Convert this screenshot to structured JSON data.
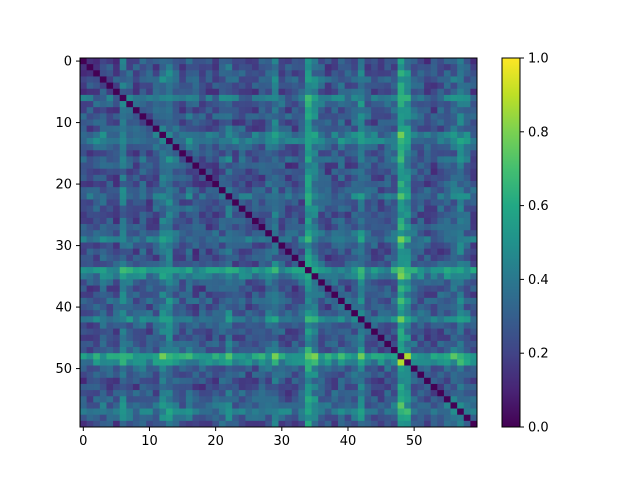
{
  "chart_data": {
    "type": "heatmap",
    "title": "",
    "xlabel": "",
    "ylabel": "",
    "rows": 60,
    "cols": 60,
    "colormap": "viridis",
    "colorbar_range": [
      0.0,
      1.0
    ],
    "colorbar_ticks": [
      "0.0",
      "0.2",
      "0.4",
      "0.6",
      "0.8",
      "1.0"
    ],
    "x_ticks": [
      "0",
      "10",
      "20",
      "30",
      "40",
      "50"
    ],
    "y_ticks": [
      "0",
      "10",
      "20",
      "30",
      "40",
      "50"
    ],
    "diagonal_value": 0.0,
    "row_col_profile": [
      0.18,
      0.2,
      0.22,
      0.28,
      0.24,
      0.2,
      0.45,
      0.3,
      0.22,
      0.3,
      0.22,
      0.25,
      0.45,
      0.5,
      0.3,
      0.22,
      0.3,
      0.2,
      0.18,
      0.2,
      0.22,
      0.28,
      0.42,
      0.22,
      0.25,
      0.2,
      0.2,
      0.24,
      0.3,
      0.45,
      0.25,
      0.2,
      0.2,
      0.25,
      0.7,
      0.5,
      0.3,
      0.22,
      0.25,
      0.3,
      0.22,
      0.3,
      0.5,
      0.25,
      0.22,
      0.2,
      0.25,
      0.3,
      0.8,
      0.6,
      0.3,
      0.25,
      0.22,
      0.2,
      0.25,
      0.3,
      0.35,
      0.5,
      0.3,
      0.22
    ],
    "colors": {
      "viridis_stops": [
        "#440154",
        "#482475",
        "#414487",
        "#355f8d",
        "#2a788e",
        "#21918c",
        "#22a884",
        "#44bf70",
        "#7ad151",
        "#bddf26",
        "#fde725"
      ]
    }
  }
}
